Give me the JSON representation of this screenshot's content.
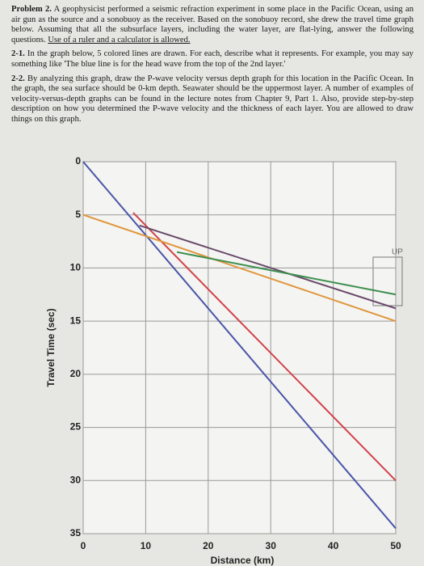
{
  "problem": {
    "label": "Problem 2.",
    "intro": "A geophysicist performed a seismic refraction experiment in some place in the Pacific Ocean, using an air gun as the source and a sonobuoy as the receiver. Based on the sonobuoy record, she drew the travel time graph below. Assuming that all the subsurface layers, including the water layer, are flat-lying, answer the following questions.",
    "note": "Use of a ruler and a calculator is allowed.",
    "questions": [
      {
        "label": "2-1.",
        "text": "In the graph below, 5 colored lines are drawn. For each, describe what it represents. For example, you may say something like 'The blue line is for the head wave from the top of the 2nd layer.'"
      },
      {
        "label": "2-2.",
        "text": "By analyzing this graph, draw the P-wave velocity versus depth graph for this location in the Pacific Ocean. In the graph, the sea surface should be 0-km depth. Seawater should be the uppermost layer. A number of examples of velocity-versus-depth graphs can be found in the lecture notes from Chapter 9, Part 1. Also, provide step-by-step description on how you determined the P-wave velocity and the thickness of each layer. You are allowed to draw things on this graph."
      }
    ]
  },
  "chart_data": {
    "type": "line",
    "x_label": "Distance (km)",
    "y_label": "Travel Time (sec)",
    "xlim": [
      0,
      50
    ],
    "xticks": [
      0,
      10,
      20,
      30,
      40,
      50
    ],
    "ylim": [
      35,
      0
    ],
    "yticks": [
      0,
      5,
      10,
      15,
      20,
      25,
      30,
      35
    ],
    "grid": true,
    "annotation": "UP",
    "series": [
      {
        "color": "#4a55a8",
        "x": [
          0,
          50
        ],
        "values": [
          0,
          34.5
        ]
      },
      {
        "color": "#d2424a",
        "x": [
          8,
          50
        ],
        "values": [
          4.8,
          30
        ]
      },
      {
        "color": "#e0963c",
        "x": [
          0,
          50
        ],
        "values": [
          5,
          15
        ]
      },
      {
        "color": "#6a4a6a",
        "x": [
          9,
          50
        ],
        "values": [
          6,
          13.8
        ]
      },
      {
        "color": "#3e8f50",
        "x": [
          15,
          50
        ],
        "values": [
          8.5,
          12.5
        ]
      }
    ]
  }
}
